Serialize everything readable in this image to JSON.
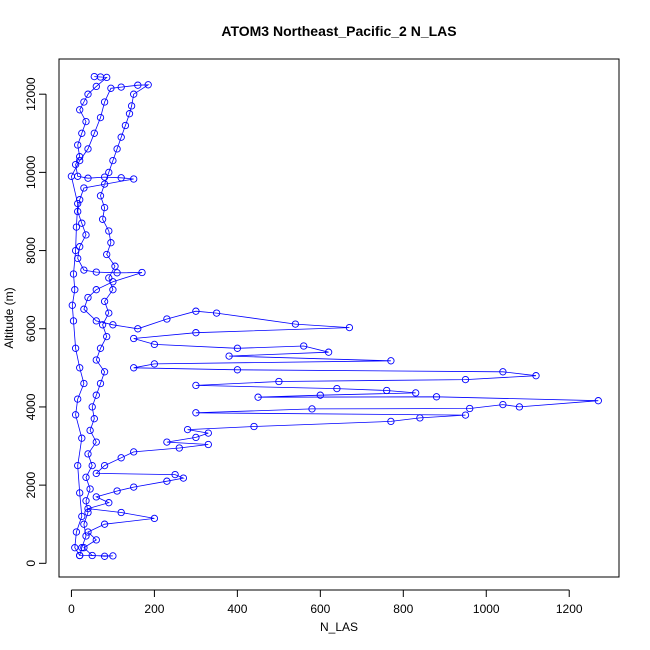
{
  "chart_data": {
    "type": "scatter",
    "title": "ATOM3 Northeast_Pacific_2 N_LAS",
    "xlabel": "N_LAS",
    "ylabel": "Altitude (m)",
    "xlim": [
      -30,
      1320
    ],
    "ylim": [
      -350,
      12900
    ],
    "x_ticks": [
      0,
      200,
      400,
      600,
      800,
      1000,
      1200
    ],
    "y_ticks": [
      0,
      2000,
      4000,
      6000,
      8000,
      10000,
      12000
    ],
    "grid": false,
    "legend": "none",
    "style": {
      "marker": "open-circle",
      "connect_points": true
    },
    "series": [
      {
        "color": "#0000ff",
        "points": [
          [
            55,
            12450
          ],
          [
            70,
            12440
          ],
          [
            85,
            12430
          ],
          [
            60,
            12200
          ],
          [
            40,
            12000
          ],
          [
            30,
            11800
          ],
          [
            20,
            11600
          ],
          [
            35,
            11300
          ],
          [
            25,
            11000
          ],
          [
            15,
            10700
          ],
          [
            20,
            10400
          ],
          [
            10,
            10200
          ],
          [
            15,
            9900
          ],
          [
            40,
            9850
          ],
          [
            80,
            9880
          ],
          [
            120,
            9860
          ],
          [
            150,
            9830
          ],
          [
            30,
            9600
          ],
          [
            20,
            9300
          ],
          [
            15,
            9000
          ],
          [
            25,
            8700
          ],
          [
            35,
            8400
          ],
          [
            20,
            8100
          ],
          [
            15,
            7800
          ],
          [
            30,
            7500
          ],
          [
            60,
            7450
          ],
          [
            110,
            7430
          ],
          [
            170,
            7440
          ],
          [
            100,
            7200
          ],
          [
            60,
            7000
          ],
          [
            40,
            6800
          ],
          [
            30,
            6500
          ],
          [
            60,
            6200
          ],
          [
            100,
            6100
          ],
          [
            160,
            6000
          ],
          [
            230,
            6250
          ],
          [
            300,
            6450
          ],
          [
            350,
            6400
          ],
          [
            540,
            6120
          ],
          [
            670,
            6030
          ],
          [
            300,
            5900
          ],
          [
            150,
            5750
          ],
          [
            200,
            5600
          ],
          [
            400,
            5500
          ],
          [
            560,
            5560
          ],
          [
            620,
            5400
          ],
          [
            380,
            5300
          ],
          [
            770,
            5180
          ],
          [
            200,
            5100
          ],
          [
            150,
            5000
          ],
          [
            400,
            4950
          ],
          [
            1040,
            4900
          ],
          [
            1120,
            4800
          ],
          [
            950,
            4700
          ],
          [
            500,
            4650
          ],
          [
            300,
            4550
          ],
          [
            640,
            4470
          ],
          [
            760,
            4420
          ],
          [
            830,
            4360
          ],
          [
            600,
            4300
          ],
          [
            450,
            4250
          ],
          [
            880,
            4260
          ],
          [
            1270,
            4160
          ],
          [
            1080,
            4000
          ],
          [
            1040,
            4060
          ],
          [
            960,
            3960
          ],
          [
            580,
            3950
          ],
          [
            300,
            3850
          ],
          [
            950,
            3790
          ],
          [
            840,
            3720
          ],
          [
            770,
            3630
          ],
          [
            440,
            3500
          ],
          [
            280,
            3420
          ],
          [
            330,
            3330
          ],
          [
            300,
            3220
          ],
          [
            230,
            3100
          ],
          [
            330,
            3040
          ],
          [
            260,
            2950
          ],
          [
            150,
            2850
          ],
          [
            120,
            2700
          ],
          [
            80,
            2500
          ],
          [
            60,
            2300
          ],
          [
            250,
            2270
          ],
          [
            270,
            2180
          ],
          [
            230,
            2100
          ],
          [
            150,
            1950
          ],
          [
            110,
            1850
          ],
          [
            60,
            1700
          ],
          [
            90,
            1550
          ],
          [
            40,
            1400
          ],
          [
            120,
            1300
          ],
          [
            200,
            1150
          ],
          [
            80,
            1000
          ],
          [
            40,
            800
          ],
          [
            60,
            600
          ],
          [
            30,
            400
          ],
          [
            50,
            200
          ],
          [
            80,
            180
          ],
          [
            100,
            190
          ],
          [
            20,
            200
          ],
          [
            8,
            400
          ],
          [
            12,
            800
          ],
          [
            25,
            1200
          ],
          [
            20,
            1800
          ],
          [
            15,
            2500
          ],
          [
            25,
            3200
          ],
          [
            10,
            3800
          ],
          [
            15,
            4200
          ],
          [
            30,
            4600
          ],
          [
            20,
            5000
          ],
          [
            10,
            5500
          ],
          [
            5,
            6200
          ],
          [
            2,
            6600
          ],
          [
            8,
            7000
          ],
          [
            5,
            7400
          ],
          [
            10,
            8000
          ],
          [
            12,
            8600
          ],
          [
            15,
            9200
          ],
          [
            0,
            9900
          ],
          [
            20,
            10300
          ],
          [
            40,
            10600
          ],
          [
            55,
            11000
          ],
          [
            70,
            11400
          ],
          [
            80,
            11800
          ],
          [
            95,
            12150
          ],
          [
            120,
            12180
          ],
          [
            160,
            12230
          ],
          [
            185,
            12240
          ],
          [
            150,
            12000
          ],
          [
            145,
            11700
          ],
          [
            140,
            11500
          ],
          [
            130,
            11200
          ],
          [
            120,
            10900
          ],
          [
            110,
            10600
          ],
          [
            100,
            10300
          ],
          [
            90,
            10000
          ],
          [
            80,
            9700
          ],
          [
            70,
            9400
          ],
          [
            80,
            9100
          ],
          [
            75,
            8800
          ],
          [
            90,
            8500
          ],
          [
            95,
            8200
          ],
          [
            85,
            7900
          ],
          [
            105,
            7600
          ],
          [
            90,
            7300
          ],
          [
            100,
            7000
          ],
          [
            80,
            6700
          ],
          [
            90,
            6400
          ],
          [
            75,
            6100
          ],
          [
            85,
            5800
          ],
          [
            70,
            5500
          ],
          [
            60,
            5200
          ],
          [
            80,
            4900
          ],
          [
            70,
            4600
          ],
          [
            60,
            4300
          ],
          [
            50,
            4000
          ],
          [
            55,
            3700
          ],
          [
            45,
            3400
          ],
          [
            60,
            3100
          ],
          [
            40,
            2800
          ],
          [
            50,
            2500
          ],
          [
            35,
            2200
          ],
          [
            45,
            1900
          ],
          [
            35,
            1600
          ],
          [
            40,
            1300
          ],
          [
            30,
            1000
          ],
          [
            35,
            700
          ],
          [
            25,
            400
          ],
          [
            20,
            200
          ]
        ]
      }
    ]
  }
}
